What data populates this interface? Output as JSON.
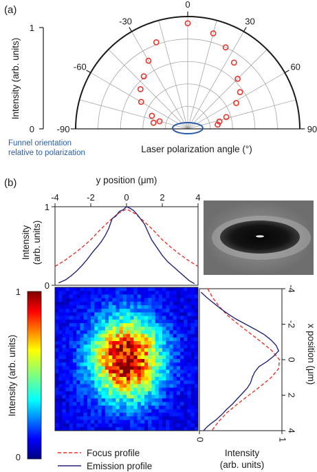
{
  "panel_a": {
    "label": "(a)",
    "intensity_label": "Intensity (arb. units)",
    "xlabel": "Laser polarization angle (°)",
    "annotation": [
      "Funnel orientation",
      "relative to polarization"
    ]
  },
  "panel_b": {
    "label": "(b)",
    "top_ylabel": [
      "Intensity",
      "(arb. units)"
    ],
    "top_xlabel": "y position (μm)",
    "right_ylabel": "x position (μm)",
    "right_xlabel": [
      "Intensity",
      "(arb. units)"
    ],
    "colorbar_label": "Intensity (arb. units)"
  },
  "legend": [
    {
      "label": "Focus profile",
      "color": "#e8332b",
      "style": "dashed"
    },
    {
      "label": "Emission profile",
      "color": "#23237a",
      "style": "solid"
    }
  ],
  "colors": {
    "marker": "#e8332b",
    "emission": "#23237a",
    "ellipse": "#2a5caa"
  },
  "chart_data": [
    {
      "type": "scatter",
      "subtype": "polar-half",
      "title": "",
      "theta_unit": "degrees",
      "theta_range": [
        -90,
        90
      ],
      "r_range": [
        0,
        1
      ],
      "theta_ticks": [
        -90,
        -60,
        -30,
        0,
        30,
        60,
        90
      ],
      "r_ticks": [
        0,
        1
      ],
      "marker": "open-circle",
      "points": [
        {
          "theta": -80,
          "r": 0.31
        },
        {
          "theta": -75,
          "r": 0.26
        },
        {
          "theta": -70,
          "r": 0.34
        },
        {
          "theta": -60,
          "r": 0.48
        },
        {
          "theta": -50,
          "r": 0.55
        },
        {
          "theta": -40,
          "r": 0.61
        },
        {
          "theta": -30,
          "r": 0.7
        },
        {
          "theta": -20,
          "r": 0.82
        },
        {
          "theta": 0,
          "r": 0.94
        },
        {
          "theta": 15,
          "r": 0.88
        },
        {
          "theta": 25,
          "r": 0.8
        },
        {
          "theta": 35,
          "r": 0.72
        },
        {
          "theta": 45,
          "r": 0.63
        },
        {
          "theta": 55,
          "r": 0.57
        },
        {
          "theta": 62,
          "r": 0.49
        },
        {
          "theta": 73,
          "r": 0.36
        },
        {
          "theta": 77,
          "r": 0.29
        },
        {
          "theta": 82,
          "r": 0.27
        }
      ],
      "grid": true
    },
    {
      "type": "line",
      "title": "",
      "xlabel": "y position (μm)",
      "ylabel": "Intensity (arb. units)",
      "xlim": [
        -4,
        4
      ],
      "ylim": [
        0,
        1
      ],
      "xticks": [
        -4,
        -2,
        0,
        2,
        4
      ],
      "yticks": [
        0,
        1
      ],
      "series": [
        {
          "name": "Focus profile",
          "style": "dashed",
          "x": [
            -4,
            -3.5,
            -3,
            -2.5,
            -2,
            -1.5,
            -1,
            -0.5,
            0,
            0.5,
            1,
            1.5,
            2,
            2.5,
            3,
            3.5,
            4
          ],
          "y": [
            0.24,
            0.31,
            0.39,
            0.48,
            0.58,
            0.7,
            0.81,
            0.91,
            0.97,
            0.91,
            0.81,
            0.7,
            0.58,
            0.48,
            0.39,
            0.31,
            0.24
          ]
        },
        {
          "name": "Emission profile",
          "style": "solid",
          "x": [
            -3.8,
            -3.4,
            -3.1,
            -2.8,
            -2.5,
            -2.2,
            -1.9,
            -1.6,
            -1.4,
            -1.2,
            -1,
            -0.8,
            -0.6,
            -0.4,
            -0.2,
            0,
            0.2,
            0.4,
            0.6,
            0.8,
            1,
            1.2,
            1.4,
            1.7,
            2,
            2.3,
            2.6,
            2.9,
            3.2,
            3.5,
            3.8
          ],
          "y": [
            0.03,
            0.07,
            0.12,
            0.18,
            0.25,
            0.33,
            0.42,
            0.5,
            0.56,
            0.63,
            0.72,
            0.85,
            0.88,
            0.94,
            0.96,
            1.0,
            0.98,
            0.95,
            0.9,
            0.84,
            0.78,
            0.68,
            0.58,
            0.48,
            0.38,
            0.3,
            0.24,
            0.18,
            0.12,
            0.06,
            0.02
          ]
        }
      ]
    },
    {
      "type": "line",
      "orientation": "vertical",
      "title": "",
      "xlabel": "Intensity (arb. units)",
      "ylabel": "x position (μm)",
      "xlim": [
        0,
        1
      ],
      "ylim": [
        -4,
        4
      ],
      "xticks": [
        0,
        1
      ],
      "yticks": [
        -4,
        -2,
        0,
        2,
        4
      ],
      "series": [
        {
          "name": "Focus profile",
          "style": "dashed",
          "x": [
            0.1,
            0.16,
            0.24,
            0.34,
            0.47,
            0.61,
            0.75,
            0.88,
            0.97,
            0.96,
            0.87,
            0.74,
            0.6,
            0.46,
            0.33,
            0.23,
            0.15
          ],
          "y": [
            -4,
            -3.5,
            -3,
            -2.5,
            -2,
            -1.5,
            -1,
            -0.5,
            0,
            0.5,
            1,
            1.5,
            2,
            2.5,
            3,
            3.5,
            4
          ]
        },
        {
          "name": "Emission profile",
          "style": "solid",
          "x": [
            0.02,
            0.09,
            0.17,
            0.25,
            0.34,
            0.44,
            0.56,
            0.68,
            0.79,
            0.87,
            0.93,
            0.96,
            0.9,
            0.82,
            0.72,
            0.67,
            0.64,
            0.62,
            0.58,
            0.52,
            0.46,
            0.4,
            0.33,
            0.27,
            0.2,
            0.14,
            0.09,
            0.05
          ],
          "y": [
            -3.8,
            -3.5,
            -3.2,
            -2.9,
            -2.6,
            -2.3,
            -2,
            -1.7,
            -1.4,
            -1.1,
            -0.8,
            -0.5,
            -0.2,
            0.1,
            0.4,
            0.7,
            1,
            1.3,
            1.6,
            1.9,
            2.2,
            2.5,
            2.8,
            3.1,
            3.4,
            3.6,
            3.8,
            4
          ]
        }
      ]
    },
    {
      "type": "heatmap",
      "title": "",
      "xlim": [
        -4,
        4
      ],
      "ylim": [
        -4,
        4
      ],
      "grid_size": 40,
      "colormap": "jet",
      "center": [
        0,
        0
      ],
      "sigma_y": 1.35,
      "sigma_x": 1.55,
      "peak": 0.88,
      "background": 0.1,
      "colorbar": {
        "range": [
          0,
          1
        ],
        "ticks": [
          0,
          1
        ],
        "label": "Intensity (arb. units)"
      }
    }
  ],
  "inset_image": {
    "kind": "grayscale micrograph",
    "shape": "dark ellipse with bright center"
  }
}
